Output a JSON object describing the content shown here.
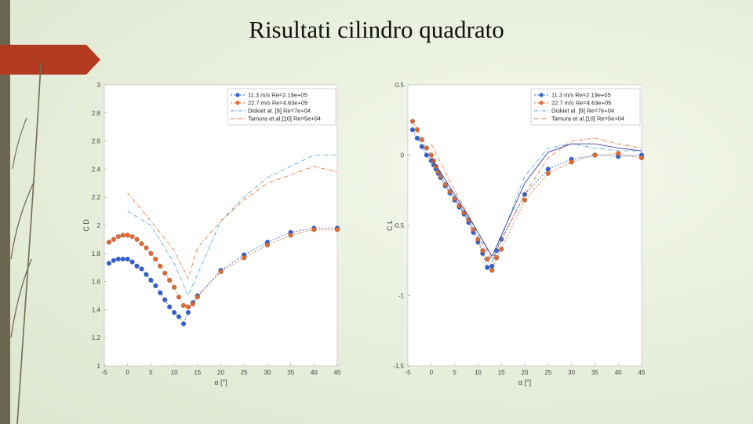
{
  "slide": {
    "title": "Risultati cilindro quadrato"
  },
  "theme": {
    "left_bar": "#6b6651",
    "accent_arrow": "#b23a1e",
    "stem_line": "#6f6a55"
  },
  "chart_data": [
    {
      "type": "line",
      "ylabel": "C D",
      "xlabel": "α [°]",
      "xlim": [
        -5,
        45
      ],
      "ylim": [
        1,
        3
      ],
      "xticks": [
        "-5",
        "0",
        "5",
        "10",
        "15",
        "20",
        "25",
        "30",
        "35",
        "40",
        "45"
      ],
      "yticks": [
        "1",
        "1.2",
        "1.4",
        "1.6",
        "1.8",
        "2",
        "2.2",
        "2.4",
        "2.6",
        "2.8",
        "3"
      ],
      "legend_position": "top-right",
      "series": [
        {
          "name": "11.3 m/s Re=2.19e+05",
          "color": "#2f5fd6",
          "style": "marker-line",
          "x": [
            -4,
            -3,
            -2,
            -1,
            0,
            1,
            2,
            3,
            4,
            5,
            6,
            7,
            8,
            9,
            10,
            11,
            12,
            13,
            14,
            15,
            20,
            25,
            30,
            35,
            40,
            45
          ],
          "y": [
            1.73,
            1.75,
            1.76,
            1.76,
            1.76,
            1.74,
            1.71,
            1.69,
            1.65,
            1.61,
            1.57,
            1.52,
            1.47,
            1.42,
            1.38,
            1.35,
            1.3,
            1.38,
            1.45,
            1.5,
            1.68,
            1.79,
            1.88,
            1.95,
            1.98,
            1.98
          ]
        },
        {
          "name": "22.7 m/s Re=4.63e+05",
          "color": "#e3682e",
          "style": "marker-line",
          "x": [
            -4,
            -3,
            -2,
            -1,
            0,
            1,
            2,
            3,
            4,
            5,
            6,
            7,
            8,
            9,
            10,
            11,
            12,
            13,
            14,
            15,
            20,
            25,
            30,
            35,
            40,
            45
          ],
          "y": [
            1.88,
            1.9,
            1.92,
            1.93,
            1.93,
            1.92,
            1.9,
            1.87,
            1.84,
            1.8,
            1.76,
            1.71,
            1.66,
            1.61,
            1.56,
            1.49,
            1.43,
            1.42,
            1.44,
            1.49,
            1.67,
            1.77,
            1.86,
            1.93,
            1.97,
            1.97
          ]
        },
        {
          "name": "Diskiet al. [9] Re=7e+04",
          "color": "#3a9ad9",
          "style": "dash-dot",
          "x": [
            0,
            5,
            10,
            13,
            20,
            25,
            30,
            35,
            40,
            45
          ],
          "y": [
            2.1,
            2.0,
            1.73,
            1.5,
            2.03,
            2.2,
            2.34,
            2.42,
            2.5,
            2.5
          ]
        },
        {
          "name": "Tamura et al.[10] Re=5e+04",
          "color": "#e3682e",
          "style": "dash-dot",
          "x": [
            0,
            5,
            10,
            13,
            15,
            20,
            25,
            30,
            35,
            40,
            45
          ],
          "y": [
            2.23,
            2.03,
            1.82,
            1.62,
            1.84,
            2.03,
            2.18,
            2.3,
            2.36,
            2.42,
            2.38
          ]
        }
      ]
    },
    {
      "type": "line",
      "ylabel": "C L",
      "xlabel": "α [°]",
      "xlim": [
        -5,
        45
      ],
      "ylim": [
        -1.5,
        0.5
      ],
      "xticks": [
        "-5",
        "0",
        "5",
        "10",
        "15",
        "20",
        "25",
        "30",
        "35",
        "40",
        "45"
      ],
      "yticks": [
        "-1.5",
        "-1",
        "-0.5",
        "0",
        "0.5"
      ],
      "legend_position": "top-right",
      "series": [
        {
          "name": "11.3 m/s Re=2.19e+05",
          "color": "#2f5fd6",
          "style": "marker-line",
          "x": [
            -4,
            -3,
            -2,
            -1,
            0,
            0.5,
            1,
            1.5,
            2,
            3,
            4,
            5,
            6,
            7,
            8,
            9,
            10,
            11,
            12,
            13,
            14,
            15,
            20,
            25,
            30,
            35,
            40,
            45
          ],
          "y": [
            0.18,
            0.12,
            0.06,
            0.0,
            -0.04,
            -0.07,
            -0.1,
            -0.13,
            -0.16,
            -0.22,
            -0.27,
            -0.32,
            -0.37,
            -0.42,
            -0.48,
            -0.55,
            -0.62,
            -0.7,
            -0.8,
            -0.79,
            -0.68,
            -0.6,
            -0.28,
            -0.1,
            -0.03,
            0.0,
            -0.01,
            0.0
          ]
        },
        {
          "name": "22.7 m/s Re=4.63e+05",
          "color": "#e3682e",
          "style": "marker-line",
          "x": [
            -4,
            -3,
            -2,
            -1,
            0,
            0.5,
            1,
            1.5,
            2,
            3,
            4,
            5,
            6,
            7,
            8,
            9,
            10,
            11,
            12,
            13,
            14,
            15,
            20,
            25,
            30,
            35,
            40,
            45
          ],
          "y": [
            0.24,
            0.18,
            0.11,
            0.05,
            0.0,
            -0.04,
            -0.08,
            -0.12,
            -0.15,
            -0.21,
            -0.26,
            -0.31,
            -0.36,
            -0.41,
            -0.46,
            -0.53,
            -0.6,
            -0.68,
            -0.74,
            -0.82,
            -0.73,
            -0.67,
            -0.32,
            -0.13,
            -0.05,
            0.0,
            0.01,
            -0.02
          ]
        },
        {
          "name": "Diskiet al. [9] Re=7e+04",
          "color": "#3a9ad9",
          "style": "dash-dot",
          "x": [
            0,
            5,
            10,
            13,
            20,
            25,
            30,
            35,
            40,
            45
          ],
          "y": [
            -0.05,
            -0.3,
            -0.58,
            -0.76,
            -0.15,
            0.05,
            0.08,
            0.05,
            0.03,
            0.03
          ]
        },
        {
          "name": "Tamura et al.[10] Re=5e+04",
          "color": "#e3682e",
          "style": "dash-dot",
          "x": [
            0,
            5,
            10,
            13,
            20,
            25,
            30,
            35,
            40,
            45
          ],
          "y": [
            0.08,
            -0.25,
            -0.55,
            -0.74,
            -0.28,
            -0.02,
            0.1,
            0.12,
            0.08,
            0.05
          ]
        },
        {
          "name": "",
          "color": "#3b3ba8",
          "style": "solid",
          "legend": false,
          "x": [
            0,
            5,
            10,
            13,
            20,
            25,
            30,
            35,
            40,
            45
          ],
          "y": [
            -0.02,
            -0.28,
            -0.55,
            -0.72,
            -0.2,
            0.02,
            0.08,
            0.08,
            0.05,
            0.03
          ]
        }
      ]
    }
  ]
}
